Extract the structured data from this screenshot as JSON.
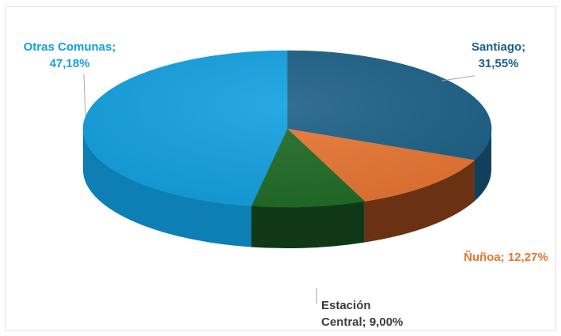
{
  "chart_data": {
    "type": "pie",
    "title": "",
    "style": "3d",
    "slices": [
      {
        "category": "Santiago",
        "value": 31.55,
        "label_line1": "Santiago;",
        "label_line2": "31,55%",
        "color": "#1b5f86",
        "side_color": "#123f5a",
        "label_color": "#1b5f86"
      },
      {
        "category": "Ñuñoa",
        "value": 12.27,
        "label_line1": "Ñuñoa; 12,27%",
        "label_line2": "",
        "color": "#e87532",
        "side_color": "#6a3212",
        "label_color": "#e87532"
      },
      {
        "category": "Estación Central",
        "value": 9.0,
        "label_line1": "Estación",
        "label_line2": "Central; 9,00%",
        "color": "#1f6b25",
        "side_color": "#103816",
        "label_color": "#3a3a3a"
      },
      {
        "category": "Otras Comunas",
        "value": 47.18,
        "label_line1": "Otras Comunas;",
        "label_line2": "47,18%",
        "color": "#12a0e0",
        "side_color": "#0e7fb4",
        "label_color": "#12a0e0"
      }
    ],
    "start_angle": "12 o'clock",
    "direction": "clockwise",
    "legend": "none"
  }
}
